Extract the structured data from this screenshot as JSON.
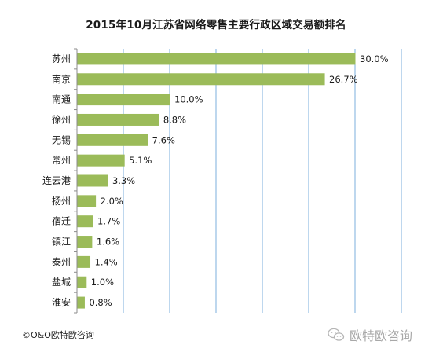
{
  "chart_data": {
    "type": "bar",
    "orientation": "horizontal",
    "title": "2015年10月江苏省网络零售主要行政区域交易额排名",
    "categories": [
      "苏州",
      "南京",
      "南通",
      "徐州",
      "无锡",
      "常州",
      "连云港",
      "扬州",
      "宿迁",
      "镇江",
      "泰州",
      "盐城",
      "淮安"
    ],
    "values": [
      30.0,
      26.7,
      10.0,
      8.8,
      7.6,
      5.1,
      3.3,
      2.0,
      1.7,
      1.6,
      1.4,
      1.0,
      0.8
    ],
    "value_labels": [
      "30.0%",
      "26.7%",
      "10.0%",
      "8.8%",
      "7.6%",
      "5.1%",
      "3.3%",
      "2.0%",
      "1.7%",
      "1.6%",
      "1.4%",
      "1.0%",
      "0.8%"
    ],
    "xlim": [
      0,
      35
    ],
    "grid": true,
    "bar_color": "#9bbb59",
    "grid_color": "#5b9bd5"
  },
  "footer": {
    "copyright": "©O&O欧特欧咨询",
    "watermark": "欧特欧咨询",
    "watermark_icon": "wechat-icon"
  }
}
